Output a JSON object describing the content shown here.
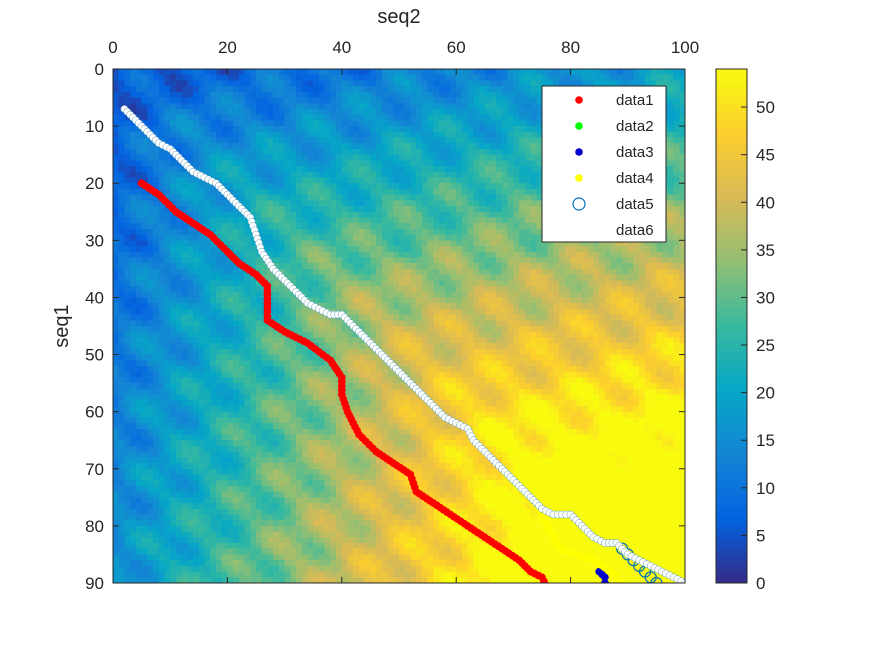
{
  "chart_data": {
    "type": "heatmap",
    "title": "",
    "xlabel": "seq2",
    "ylabel": "seq1",
    "xlim": [
      0,
      100
    ],
    "ylim": [
      0,
      90
    ],
    "y_reversed": true,
    "x_axis_position": "top",
    "x_ticks": [
      0,
      20,
      40,
      60,
      80,
      100
    ],
    "y_ticks": [
      0,
      10,
      20,
      30,
      40,
      50,
      60,
      70,
      80,
      90
    ],
    "colormap": "parula",
    "colorbar": {
      "range": [
        0,
        54
      ],
      "ticks": [
        0,
        5,
        10,
        15,
        20,
        25,
        30,
        35,
        40,
        45,
        50
      ]
    },
    "legend": {
      "placement": "top-right"
    },
    "series": [
      {
        "name": "data1",
        "marker": "filled-dot",
        "color": "#ff0000",
        "points": [
          [
            5,
            20
          ],
          [
            8,
            22
          ],
          [
            11,
            25
          ],
          [
            14,
            27
          ],
          [
            17,
            29
          ],
          [
            20,
            32
          ],
          [
            22,
            34
          ],
          [
            25,
            36
          ],
          [
            27,
            38
          ],
          [
            27,
            44
          ],
          [
            30,
            46
          ],
          [
            34,
            48
          ],
          [
            38,
            51
          ],
          [
            40,
            54
          ],
          [
            40,
            57
          ],
          [
            41,
            60
          ],
          [
            43,
            64
          ],
          [
            46,
            67
          ],
          [
            49,
            69
          ],
          [
            52,
            71
          ],
          [
            53,
            74
          ],
          [
            56,
            76
          ],
          [
            59,
            78
          ],
          [
            62,
            80
          ],
          [
            65,
            82
          ],
          [
            68,
            84
          ],
          [
            71,
            86
          ],
          [
            73,
            88
          ],
          [
            75,
            89
          ],
          [
            76,
            91
          ]
        ]
      },
      {
        "name": "data2",
        "marker": "filled-dot",
        "color": "#00ff00",
        "points": []
      },
      {
        "name": "data3",
        "marker": "filled-dot",
        "color": "#0000cc",
        "points": [
          [
            85,
            88
          ],
          [
            86,
            89
          ],
          [
            86,
            90
          ],
          [
            87,
            91
          ]
        ]
      },
      {
        "name": "data4",
        "marker": "filled-dot",
        "color": "#ffff00",
        "points": [
          [
            67,
            69
          ],
          [
            70,
            72
          ],
          [
            72,
            74
          ],
          [
            74,
            76
          ],
          [
            75,
            78
          ],
          [
            76,
            80
          ],
          [
            77,
            82
          ],
          [
            78,
            84
          ],
          [
            81,
            85
          ],
          [
            84,
            86
          ],
          [
            87,
            88
          ],
          [
            89,
            90
          ],
          [
            90,
            91
          ]
        ]
      },
      {
        "name": "data5",
        "marker": "open-circle",
        "color": "#0072bd",
        "points": [
          [
            89,
            84
          ],
          [
            90,
            85
          ],
          [
            91,
            86
          ],
          [
            92,
            87
          ],
          [
            93,
            88
          ],
          [
            94,
            89
          ],
          [
            95,
            90
          ],
          [
            96,
            91
          ]
        ]
      },
      {
        "name": "data6",
        "marker": "filled-dot",
        "color": "#ffffff",
        "points": [
          [
            2,
            7
          ],
          [
            4,
            9
          ],
          [
            6,
            11
          ],
          [
            8,
            13
          ],
          [
            10,
            14
          ],
          [
            12,
            16
          ],
          [
            14,
            18
          ],
          [
            16,
            19
          ],
          [
            18,
            20
          ],
          [
            20,
            22
          ],
          [
            22,
            24
          ],
          [
            24,
            26
          ],
          [
            25,
            29
          ],
          [
            26,
            32
          ],
          [
            28,
            35
          ],
          [
            30,
            37
          ],
          [
            32,
            39
          ],
          [
            34,
            41
          ],
          [
            36,
            42
          ],
          [
            38,
            43
          ],
          [
            40,
            43
          ],
          [
            42,
            45
          ],
          [
            44,
            47
          ],
          [
            46,
            49
          ],
          [
            48,
            51
          ],
          [
            50,
            53
          ],
          [
            52,
            55
          ],
          [
            54,
            57
          ],
          [
            56,
            59
          ],
          [
            58,
            61
          ],
          [
            60,
            62
          ],
          [
            62,
            63
          ],
          [
            63,
            65
          ],
          [
            65,
            67
          ],
          [
            67,
            69
          ],
          [
            69,
            71
          ],
          [
            71,
            73
          ],
          [
            73,
            75
          ],
          [
            75,
            77
          ],
          [
            77,
            78
          ],
          [
            80,
            78
          ],
          [
            82,
            80
          ],
          [
            84,
            82
          ],
          [
            86,
            83
          ],
          [
            88,
            83
          ],
          [
            90,
            85
          ],
          [
            92,
            86
          ],
          [
            94,
            87
          ],
          [
            96,
            88
          ],
          [
            98,
            89
          ],
          [
            100,
            90
          ]
        ]
      }
    ]
  }
}
